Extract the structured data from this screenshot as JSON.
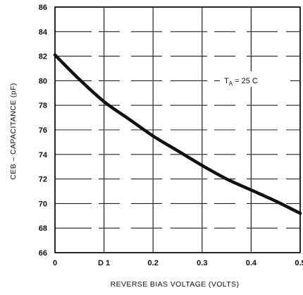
{
  "chart_data": {
    "type": "line",
    "title": "",
    "xlabel": "REVERSE BIAS VOLTAGE (VOLTS)",
    "ylabel": "CEB – CAPACITANCE (pF)",
    "xlim": [
      0,
      0.5
    ],
    "ylim": [
      66,
      86
    ],
    "x_ticks": [
      0,
      0.1,
      0.2,
      0.3,
      0.4,
      0.5
    ],
    "x_tick_labels": [
      "0",
      "D 1",
      "0.2",
      "0.3",
      "0.4",
      "0.5"
    ],
    "y_ticks": [
      66,
      68,
      70,
      72,
      74,
      76,
      78,
      80,
      82,
      84,
      86
    ],
    "y_tick_labels": [
      "66",
      "68",
      "70",
      "72",
      "74",
      "76",
      "78",
      "80",
      "82",
      "84",
      "86"
    ],
    "grid": true,
    "legend": "none",
    "annotation": "T",
    "annotation_sub": "A",
    "annotation_rest": " = 25 C",
    "series": [
      {
        "x": [
          0,
          0.05,
          0.1,
          0.15,
          0.2,
          0.25,
          0.3,
          0.35,
          0.4,
          0.45,
          0.5
        ],
        "values": [
          82.1,
          80.1,
          78.3,
          76.9,
          75.5,
          74.3,
          73.1,
          72.0,
          71.1,
          70.2,
          69.2
        ]
      }
    ],
    "colors": {
      "curve": "#111111",
      "grid": "#222222",
      "frame": "#111111"
    }
  }
}
